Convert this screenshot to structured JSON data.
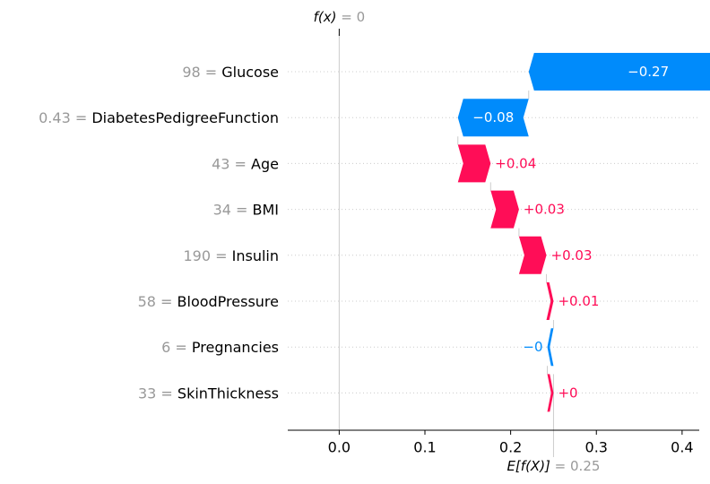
{
  "chart_data": {
    "type": "bar",
    "subtype": "waterfall",
    "base_value": 0.25,
    "output_value": 0,
    "base_label": {
      "expr": "E[f(X)]",
      "sep": " = ",
      "value": "0.25"
    },
    "output_label": {
      "expr": "f(x)",
      "sep": " = ",
      "value": "0"
    },
    "xlim": [
      -0.06,
      0.42
    ],
    "xticks": [
      {
        "value": 0.0,
        "label": "0.0"
      },
      {
        "value": 0.1,
        "label": "0.1"
      },
      {
        "value": 0.2,
        "label": "0.2"
      },
      {
        "value": 0.3,
        "label": "0.3"
      },
      {
        "value": 0.4,
        "label": "0.4"
      }
    ],
    "features": [
      {
        "name": "Glucose",
        "value": "98",
        "contribution": -0.27,
        "label": "−0.27",
        "label_inside": true
      },
      {
        "name": "DiabetesPedigreeFunction",
        "value": "0.43",
        "contribution": -0.08,
        "label": "−0.08",
        "label_inside": true
      },
      {
        "name": "Age",
        "value": "43",
        "contribution": 0.037,
        "label": "+0.04",
        "label_inside": false
      },
      {
        "name": "BMI",
        "value": "34",
        "contribution": 0.032,
        "label": "+0.03",
        "label_inside": false
      },
      {
        "name": "Insulin",
        "value": "190",
        "contribution": 0.031,
        "label": "+0.03",
        "label_inside": false
      },
      {
        "name": "BloodPressure",
        "value": "58",
        "contribution": 0.008,
        "label": "+0.01",
        "label_inside": false
      },
      {
        "name": "Pregnancies",
        "value": "6",
        "contribution": -0.007,
        "label": "−0",
        "label_inside": false
      },
      {
        "name": "SkinThickness",
        "value": "33",
        "contribution": 0.007,
        "label": "+0",
        "label_inside": false
      }
    ],
    "colors": {
      "positive": "#ff0d57",
      "negative": "#008bfb",
      "grid": "#cccccc",
      "muted": "#999999",
      "text": "#000000",
      "inside_text": "#ffffff"
    }
  }
}
